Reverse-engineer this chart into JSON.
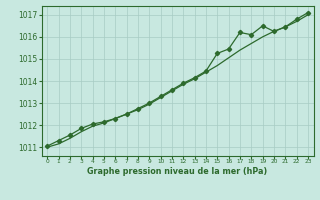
{
  "title": "Graphe pression niveau de la mer (hPa)",
  "x_hours": [
    0,
    1,
    2,
    3,
    4,
    5,
    6,
    7,
    8,
    9,
    10,
    11,
    12,
    13,
    14,
    15,
    16,
    17,
    18,
    19,
    20,
    21,
    22,
    23
  ],
  "pressure_measured": [
    1011.05,
    1011.3,
    1011.55,
    1011.85,
    1012.05,
    1012.15,
    1012.3,
    1012.5,
    1012.75,
    1013.0,
    1013.3,
    1013.6,
    1013.9,
    1014.15,
    1014.45,
    1015.25,
    1015.45,
    1016.2,
    1016.1,
    1016.5,
    1016.25,
    1016.45,
    1016.8,
    1017.1
  ],
  "pressure_smooth": [
    1011.0,
    1011.15,
    1011.4,
    1011.7,
    1011.95,
    1012.1,
    1012.3,
    1012.5,
    1012.7,
    1012.95,
    1013.25,
    1013.55,
    1013.85,
    1014.1,
    1014.4,
    1014.7,
    1015.05,
    1015.4,
    1015.7,
    1016.0,
    1016.25,
    1016.45,
    1016.7,
    1017.0
  ],
  "line_color": "#2d6a2d",
  "bg_color": "#c8e8e0",
  "grid_color": "#a8ccc4",
  "ylim_min": 1010.6,
  "ylim_max": 1017.4,
  "xlim_min": -0.5,
  "xlim_max": 23.5,
  "yticks": [
    1011,
    1012,
    1013,
    1014,
    1015,
    1016,
    1017
  ],
  "xticks": [
    0,
    1,
    2,
    3,
    4,
    5,
    6,
    7,
    8,
    9,
    10,
    11,
    12,
    13,
    14,
    15,
    16,
    17,
    18,
    19,
    20,
    21,
    22,
    23
  ],
  "fig_width": 3.2,
  "fig_height": 2.0,
  "dpi": 100
}
